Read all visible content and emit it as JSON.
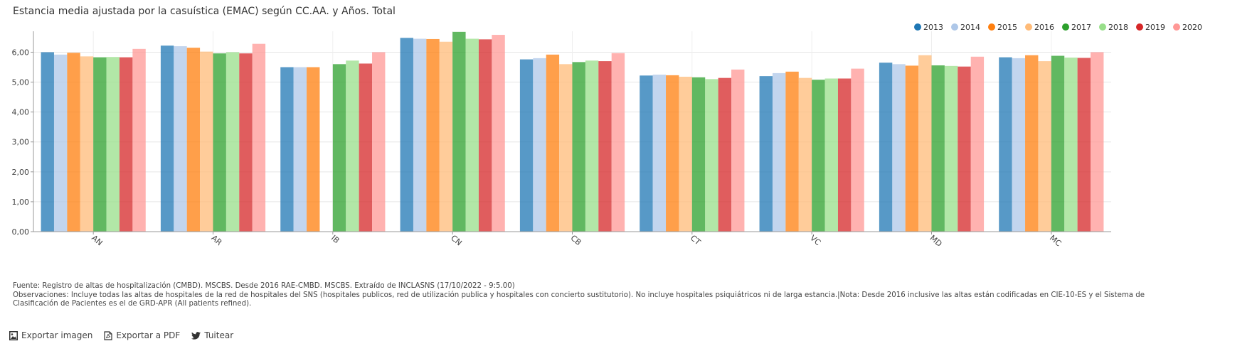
{
  "title": "Estancia media ajustada por la casuística (EMAC) según CC.AA. y Años. Total",
  "colors": {
    "2013": "#1f77b4",
    "2014": "#aec7e8",
    "2015": "#ff7f0e",
    "2016": "#ffbb78",
    "2017": "#2ca02c",
    "2018": "#98df8a",
    "2019": "#d62728",
    "2020": "#ff9896"
  },
  "chart_data": {
    "type": "bar",
    "title": "Estancia media ajustada por la casuística (EMAC) según CC.AA. y Años. Total",
    "xlabel": "",
    "ylabel": "",
    "ylim": [
      0,
      6.7
    ],
    "yticks": [
      "0,00",
      "1,00",
      "2,00",
      "3,00",
      "4,00",
      "5,00",
      "6,00"
    ],
    "yticks_values": [
      0,
      1,
      2,
      3,
      4,
      5,
      6
    ],
    "grid": true,
    "legend": "top-right",
    "categories": [
      "AN",
      "AR",
      "IB",
      "CN",
      "CB",
      "CT",
      "VC",
      "MD",
      "MC"
    ],
    "series": [
      {
        "name": "2013",
        "values": [
          6.0,
          6.22,
          5.5,
          6.48,
          5.76,
          5.22,
          5.2,
          5.65,
          5.83
        ]
      },
      {
        "name": "2014",
        "values": [
          5.92,
          6.2,
          5.5,
          6.45,
          5.8,
          5.25,
          5.3,
          5.6,
          5.8
        ]
      },
      {
        "name": "2015",
        "values": [
          5.98,
          6.15,
          5.5,
          6.44,
          5.92,
          5.23,
          5.35,
          5.55,
          5.9
        ]
      },
      {
        "name": "2016",
        "values": [
          5.86,
          6.02,
          null,
          6.35,
          5.6,
          5.18,
          5.14,
          5.9,
          5.7
        ]
      },
      {
        "name": "2017",
        "values": [
          5.83,
          5.96,
          5.6,
          6.68,
          5.67,
          5.16,
          5.08,
          5.56,
          5.88
        ]
      },
      {
        "name": "2018",
        "values": [
          5.84,
          6.0,
          5.72,
          6.45,
          5.72,
          5.1,
          5.12,
          5.54,
          5.82
        ]
      },
      {
        "name": "2019",
        "values": [
          5.83,
          5.96,
          5.62,
          6.43,
          5.7,
          5.14,
          5.12,
          5.52,
          5.81
        ]
      },
      {
        "name": "2020",
        "values": [
          6.11,
          6.28,
          6.0,
          6.58,
          5.97,
          5.42,
          5.45,
          5.85,
          6.0
        ]
      }
    ]
  },
  "footer": {
    "source": "Fuente: Registro de altas de hospitalización (CMBD). MSCBS. Desde 2016 RAE-CMBD. MSCBS. Extraído de INCLASNS (17/10/2022 - 9:5.00)",
    "notes": "Observaciones: Incluye todas las altas de hospitales de la red de hospitales del SNS (hospitales publicos, red de utilización publica y hospitales con concierto sustitutorio). No incluye hospitales psiquiátricos ni de larga estancia.|Nota: Desde 2016 inclusive las altas están codificadas en CIE-10-ES y el Sistema de Clasificación de Pacientes es el de GRD-APR (All patients refined)."
  },
  "actions": {
    "export_image": "Exportar imagen",
    "export_pdf": "Exportar a PDF",
    "tweet": "Tuitear",
    "icons": [
      "image-icon",
      "pdf-icon",
      "twitter-icon"
    ]
  }
}
